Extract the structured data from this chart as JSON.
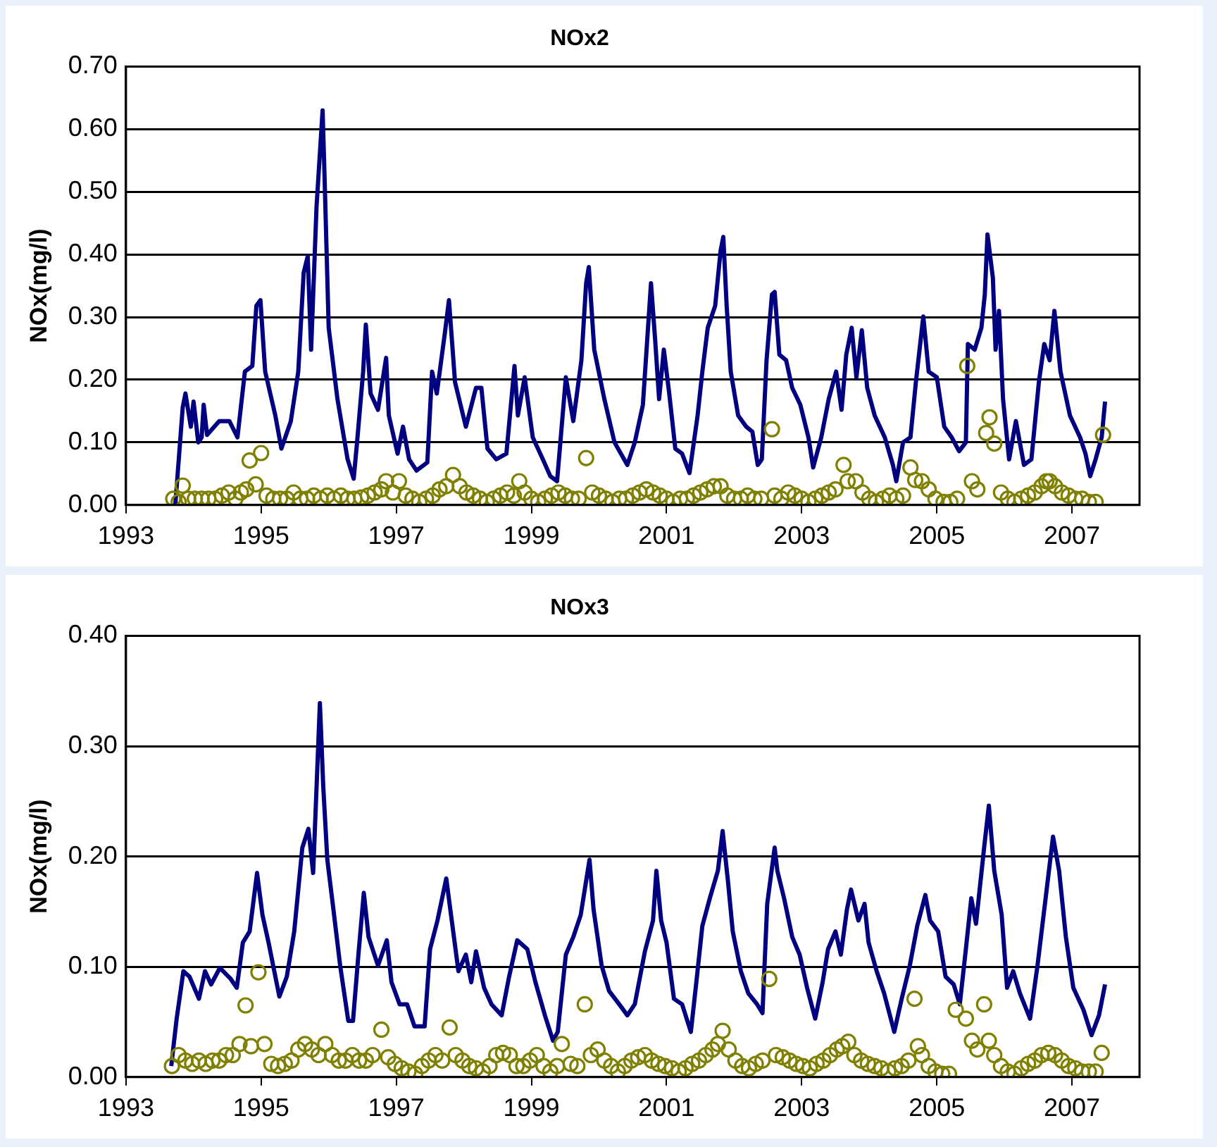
{
  "chart_data": [
    {
      "type": "line",
      "title": "NOx2",
      "ylabel": "NOx(mg/l)",
      "xlim": [
        1993,
        2008
      ],
      "xticks": [
        1993,
        1995,
        1997,
        1999,
        2001,
        2003,
        2005,
        2007
      ],
      "ylim": [
        0,
        0.7
      ],
      "yticks": [
        {
          "value": 0,
          "label": "0.00"
        },
        {
          "value": 0.1,
          "label": "0.10"
        },
        {
          "value": 0.2,
          "label": "0.20"
        },
        {
          "value": 0.3,
          "label": "0.30"
        },
        {
          "value": 0.4,
          "label": "0.40"
        },
        {
          "value": 0.5,
          "label": "0.50"
        },
        {
          "value": 0.6,
          "label": "0.60"
        },
        {
          "value": 0.7,
          "label": "0.70"
        }
      ],
      "grid": "y",
      "legend": false,
      "series": [
        {
          "marker": "none",
          "color": "#000080",
          "x": [
            1993.73,
            1993.84,
            1993.88,
            1993.96,
            1994.0,
            1994.07,
            1994.12,
            1994.15,
            1994.2,
            1994.38,
            1994.53,
            1994.65,
            1994.76,
            1994.87,
            1994.93,
            1994.99,
            1995.06,
            1995.21,
            1995.3,
            1995.44,
            1995.55,
            1995.63,
            1995.69,
            1995.74,
            1995.82,
            1995.91,
            1995.94,
            1996.0,
            1996.04,
            1996.13,
            1996.28,
            1996.37,
            1996.42,
            1996.51,
            1996.55,
            1996.62,
            1996.73,
            1996.85,
            1996.89,
            1997.02,
            1997.1,
            1997.19,
            1997.3,
            1997.46,
            1997.53,
            1997.6,
            1997.72,
            1997.78,
            1997.87,
            1998.03,
            1998.18,
            1998.26,
            1998.35,
            1998.48,
            1998.63,
            1998.75,
            1998.8,
            1998.9,
            1999.02,
            1999.17,
            1999.28,
            1999.38,
            1999.51,
            1999.62,
            1999.74,
            1999.81,
            1999.85,
            1999.93,
            2000.08,
            2000.23,
            2000.42,
            2000.53,
            2000.65,
            2000.77,
            2000.83,
            2000.89,
            2000.96,
            2001.04,
            2001.13,
            2001.23,
            2001.34,
            2001.46,
            2001.53,
            2001.61,
            2001.72,
            2001.8,
            2001.84,
            2001.89,
            2001.95,
            2002.06,
            2002.18,
            2002.27,
            2002.35,
            2002.41,
            2002.48,
            2002.56,
            2002.6,
            2002.67,
            2002.77,
            2002.86,
            2002.98,
            2003.1,
            2003.17,
            2003.29,
            2003.4,
            2003.51,
            2003.59,
            2003.66,
            2003.74,
            2003.81,
            2003.89,
            2003.97,
            2004.08,
            2004.23,
            2004.35,
            2004.4,
            2004.5,
            2004.61,
            2004.69,
            2004.8,
            2004.88,
            2005.0,
            2005.11,
            2005.22,
            2005.33,
            2005.43,
            2005.46,
            2005.56,
            2005.66,
            2005.71,
            2005.75,
            2005.83,
            2005.87,
            2005.92,
            2005.98,
            2006.07,
            2006.17,
            2006.29,
            2006.4,
            2006.51,
            2006.59,
            2006.67,
            2006.74,
            2006.83,
            2006.97,
            2007.12,
            2007.2,
            2007.27,
            2007.35,
            2007.44,
            2007.49
          ],
          "values": [
            0.0,
            0.156,
            0.178,
            0.125,
            0.165,
            0.1,
            0.108,
            0.16,
            0.112,
            0.134,
            0.134,
            0.108,
            0.213,
            0.222,
            0.318,
            0.327,
            0.213,
            0.143,
            0.09,
            0.134,
            0.213,
            0.371,
            0.397,
            0.248,
            0.476,
            0.63,
            0.52,
            0.283,
            0.248,
            0.169,
            0.073,
            0.042,
            0.1,
            0.213,
            0.288,
            0.178,
            0.152,
            0.235,
            0.143,
            0.082,
            0.125,
            0.073,
            0.055,
            0.068,
            0.213,
            0.178,
            0.275,
            0.327,
            0.196,
            0.125,
            0.187,
            0.187,
            0.09,
            0.073,
            0.082,
            0.222,
            0.143,
            0.204,
            0.108,
            0.073,
            0.046,
            0.038,
            0.204,
            0.134,
            0.231,
            0.354,
            0.38,
            0.248,
            0.169,
            0.1,
            0.064,
            0.1,
            0.16,
            0.354,
            0.266,
            0.169,
            0.248,
            0.178,
            0.09,
            0.082,
            0.051,
            0.143,
            0.213,
            0.283,
            0.318,
            0.406,
            0.428,
            0.318,
            0.213,
            0.143,
            0.125,
            0.117,
            0.064,
            0.073,
            0.231,
            0.336,
            0.34,
            0.24,
            0.231,
            0.187,
            0.16,
            0.108,
            0.06,
            0.108,
            0.169,
            0.213,
            0.152,
            0.24,
            0.283,
            0.204,
            0.279,
            0.187,
            0.143,
            0.108,
            0.064,
            0.038,
            0.1,
            0.108,
            0.196,
            0.301,
            0.213,
            0.204,
            0.125,
            0.108,
            0.086,
            0.1,
            0.257,
            0.248,
            0.283,
            0.336,
            0.432,
            0.362,
            0.248,
            0.31,
            0.169,
            0.073,
            0.134,
            0.064,
            0.073,
            0.196,
            0.257,
            0.231,
            0.31,
            0.213,
            0.143,
            0.108,
            0.082,
            0.046,
            0.073,
            0.108,
            0.165
          ]
        },
        {
          "type": "scatter",
          "marker": "circle",
          "color": "#808000",
          "x": [
            1993.7,
            1993.78,
            1993.84,
            1993.92,
            1994.02,
            1994.12,
            1994.22,
            1994.32,
            1994.42,
            1994.52,
            1994.62,
            1994.7,
            1994.78,
            1994.83,
            1994.92,
            1995.0,
            1995.08,
            1995.18,
            1995.28,
            1995.38,
            1995.48,
            1995.58,
            1995.68,
            1995.78,
            1995.88,
            1995.98,
            1996.08,
            1996.18,
            1996.28,
            1996.38,
            1996.48,
            1996.58,
            1996.68,
            1996.78,
            1996.85,
            1996.95,
            1997.04,
            1997.14,
            1997.24,
            1997.34,
            1997.44,
            1997.54,
            1997.64,
            1997.74,
            1997.84,
            1997.94,
            1998.04,
            1998.14,
            1998.24,
            1998.34,
            1998.44,
            1998.54,
            1998.64,
            1998.74,
            1998.82,
            1998.9,
            1999.0,
            1999.1,
            1999.2,
            1999.3,
            1999.4,
            1999.5,
            1999.6,
            1999.7,
            1999.81,
            1999.9,
            2000.0,
            2000.1,
            2000.2,
            2000.3,
            2000.4,
            2000.5,
            2000.6,
            2000.7,
            2000.8,
            2000.9,
            2001.0,
            2001.1,
            2001.2,
            2001.3,
            2001.4,
            2001.5,
            2001.6,
            2001.7,
            2001.8,
            2001.9,
            2002.0,
            2002.1,
            2002.2,
            2002.3,
            2002.4,
            2002.56,
            2002.6,
            2002.7,
            2002.8,
            2002.9,
            2003.0,
            2003.1,
            2003.2,
            2003.3,
            2003.4,
            2003.5,
            2003.62,
            2003.68,
            2003.8,
            2003.9,
            2004.0,
            2004.1,
            2004.2,
            2004.3,
            2004.4,
            2004.5,
            2004.61,
            2004.68,
            2004.78,
            2004.88,
            2004.98,
            2005.1,
            2005.2,
            2005.3,
            2005.45,
            2005.52,
            2005.6,
            2005.73,
            2005.78,
            2005.85,
            2005.95,
            2006.05,
            2006.15,
            2006.25,
            2006.35,
            2006.45,
            2006.55,
            2006.62,
            2006.67,
            2006.75,
            2006.85,
            2006.95,
            2007.05,
            2007.15,
            2007.25,
            2007.35,
            2007.46
          ],
          "values": [
            0.01,
            0.005,
            0.031,
            0.01,
            0.01,
            0.01,
            0.01,
            0.01,
            0.015,
            0.02,
            0.01,
            0.02,
            0.025,
            0.071,
            0.033,
            0.083,
            0.015,
            0.01,
            0.01,
            0.01,
            0.02,
            0.01,
            0.01,
            0.015,
            0.01,
            0.015,
            0.01,
            0.015,
            0.01,
            0.01,
            0.012,
            0.015,
            0.02,
            0.025,
            0.038,
            0.02,
            0.038,
            0.015,
            0.01,
            0.005,
            0.01,
            0.015,
            0.025,
            0.03,
            0.048,
            0.03,
            0.02,
            0.015,
            0.01,
            0.005,
            0.01,
            0.015,
            0.02,
            0.015,
            0.038,
            0.02,
            0.01,
            0.005,
            0.01,
            0.015,
            0.02,
            0.015,
            0.01,
            0.01,
            0.075,
            0.02,
            0.015,
            0.01,
            0.005,
            0.01,
            0.01,
            0.015,
            0.02,
            0.025,
            0.02,
            0.015,
            0.01,
            0.005,
            0.01,
            0.01,
            0.015,
            0.02,
            0.025,
            0.03,
            0.03,
            0.015,
            0.01,
            0.01,
            0.015,
            0.01,
            0.01,
            0.121,
            0.015,
            0.01,
            0.02,
            0.015,
            0.01,
            0.005,
            0.01,
            0.015,
            0.02,
            0.025,
            0.064,
            0.038,
            0.038,
            0.02,
            0.01,
            0.005,
            0.01,
            0.015,
            0.01,
            0.015,
            0.06,
            0.04,
            0.038,
            0.025,
            0.01,
            0.005,
            0.005,
            0.01,
            0.222,
            0.038,
            0.025,
            0.115,
            0.14,
            0.098,
            0.02,
            0.01,
            0.005,
            0.01,
            0.015,
            0.02,
            0.03,
            0.038,
            0.038,
            0.03,
            0.02,
            0.015,
            0.01,
            0.01,
            0.005,
            0.005,
            0.112
          ]
        }
      ]
    },
    {
      "type": "line",
      "title": "NOx3",
      "ylabel": "NOx(mg/l)",
      "xlim": [
        1993,
        2008
      ],
      "xticks": [
        1993,
        1995,
        1997,
        1999,
        2001,
        2003,
        2005,
        2007
      ],
      "ylim": [
        0,
        0.4
      ],
      "yticks": [
        {
          "value": 0,
          "label": "0.00"
        },
        {
          "value": 0.1,
          "label": "0.10"
        },
        {
          "value": 0.2,
          "label": "0.20"
        },
        {
          "value": 0.3,
          "label": "0.30"
        },
        {
          "value": 0.4,
          "label": "0.40"
        }
      ],
      "grid": "y",
      "legend": false,
      "series": [
        {
          "marker": "none",
          "color": "#000080",
          "x": [
            1993.67,
            1993.75,
            1993.85,
            1993.94,
            1994.08,
            1994.17,
            1994.26,
            1994.39,
            1994.55,
            1994.64,
            1994.73,
            1994.83,
            1994.94,
            1995.02,
            1995.11,
            1995.27,
            1995.38,
            1995.49,
            1995.61,
            1995.7,
            1995.77,
            1995.87,
            1995.92,
            1995.98,
            1996.06,
            1996.17,
            1996.29,
            1996.36,
            1996.44,
            1996.52,
            1996.59,
            1996.73,
            1996.86,
            1996.93,
            1997.05,
            1997.16,
            1997.27,
            1997.42,
            1997.5,
            1997.61,
            1997.74,
            1997.8,
            1997.92,
            1998.03,
            1998.11,
            1998.18,
            1998.3,
            1998.41,
            1998.56,
            1998.67,
            1998.79,
            1998.94,
            1999.06,
            1999.2,
            1999.32,
            1999.39,
            1999.51,
            1999.62,
            1999.73,
            1999.86,
            1999.92,
            2000.04,
            2000.15,
            2000.3,
            2000.42,
            2000.53,
            2000.68,
            2000.8,
            2000.85,
            2000.92,
            2001.0,
            2001.11,
            2001.23,
            2001.36,
            2001.45,
            2001.53,
            2001.64,
            2001.76,
            2001.83,
            2001.91,
            2001.98,
            2002.1,
            2002.21,
            2002.34,
            2002.42,
            2002.49,
            2002.6,
            2002.64,
            2002.74,
            2002.86,
            2002.97,
            2003.08,
            2003.2,
            2003.31,
            2003.39,
            2003.5,
            2003.58,
            2003.67,
            2003.73,
            2003.84,
            2003.93,
            2003.99,
            2004.11,
            2004.22,
            2004.37,
            2004.48,
            2004.6,
            2004.71,
            2004.83,
            2004.9,
            2005.02,
            2005.13,
            2005.25,
            2005.34,
            2005.43,
            2005.51,
            2005.58,
            2005.7,
            2005.77,
            2005.85,
            2005.96,
            2006.04,
            2006.13,
            2006.23,
            2006.38,
            2006.49,
            2006.61,
            2006.72,
            2006.81,
            2006.91,
            2007.02,
            2007.17,
            2007.29,
            2007.4,
            2007.49
          ],
          "values": [
            0.01,
            0.053,
            0.096,
            0.091,
            0.071,
            0.096,
            0.084,
            0.099,
            0.089,
            0.081,
            0.122,
            0.132,
            0.185,
            0.147,
            0.122,
            0.073,
            0.091,
            0.132,
            0.208,
            0.225,
            0.185,
            0.339,
            0.263,
            0.197,
            0.157,
            0.101,
            0.051,
            0.051,
            0.111,
            0.167,
            0.127,
            0.101,
            0.124,
            0.086,
            0.066,
            0.066,
            0.046,
            0.046,
            0.116,
            0.142,
            0.18,
            0.152,
            0.096,
            0.111,
            0.086,
            0.114,
            0.081,
            0.066,
            0.056,
            0.091,
            0.124,
            0.116,
            0.086,
            0.056,
            0.033,
            0.041,
            0.111,
            0.127,
            0.147,
            0.197,
            0.152,
            0.101,
            0.078,
            0.066,
            0.056,
            0.066,
            0.114,
            0.142,
            0.187,
            0.142,
            0.122,
            0.071,
            0.066,
            0.041,
            0.091,
            0.137,
            0.162,
            0.187,
            0.223,
            0.177,
            0.132,
            0.096,
            0.076,
            0.066,
            0.058,
            0.157,
            0.208,
            0.187,
            0.162,
            0.127,
            0.111,
            0.081,
            0.053,
            0.086,
            0.116,
            0.132,
            0.111,
            0.152,
            0.17,
            0.142,
            0.157,
            0.122,
            0.096,
            0.076,
            0.041,
            0.071,
            0.101,
            0.137,
            0.165,
            0.142,
            0.132,
            0.091,
            0.084,
            0.066,
            0.116,
            0.162,
            0.139,
            0.208,
            0.246,
            0.187,
            0.147,
            0.081,
            0.096,
            0.076,
            0.053,
            0.101,
            0.162,
            0.218,
            0.187,
            0.127,
            0.081,
            0.061,
            0.038,
            0.056,
            0.084
          ]
        },
        {
          "type": "scatter",
          "marker": "circle",
          "color": "#808000",
          "x": [
            1993.68,
            1993.78,
            1993.88,
            1993.98,
            1994.08,
            1994.18,
            1994.28,
            1994.38,
            1994.48,
            1994.58,
            1994.68,
            1994.77,
            1994.85,
            1994.96,
            1995.05,
            1995.15,
            1995.25,
            1995.35,
            1995.45,
            1995.55,
            1995.65,
            1995.75,
            1995.85,
            1995.95,
            1996.05,
            1996.15,
            1996.25,
            1996.35,
            1996.45,
            1996.55,
            1996.65,
            1996.78,
            1996.88,
            1996.98,
            1997.08,
            1997.18,
            1997.28,
            1997.38,
            1997.48,
            1997.58,
            1997.68,
            1997.79,
            1997.88,
            1997.98,
            1998.08,
            1998.18,
            1998.28,
            1998.38,
            1998.48,
            1998.58,
            1998.68,
            1998.78,
            1998.88,
            1998.98,
            1999.08,
            1999.18,
            1999.28,
            1999.38,
            1999.45,
            1999.58,
            1999.68,
            1999.79,
            1999.88,
            1999.98,
            2000.08,
            2000.18,
            2000.28,
            2000.38,
            2000.48,
            2000.58,
            2000.68,
            2000.78,
            2000.88,
            2000.98,
            2001.08,
            2001.18,
            2001.28,
            2001.38,
            2001.48,
            2001.58,
            2001.68,
            2001.76,
            2001.83,
            2001.92,
            2002.02,
            2002.12,
            2002.22,
            2002.32,
            2002.42,
            2002.52,
            2002.62,
            2002.72,
            2002.82,
            2002.92,
            2003.02,
            2003.12,
            2003.22,
            2003.32,
            2003.42,
            2003.52,
            2003.6,
            2003.69,
            2003.78,
            2003.88,
            2003.98,
            2004.08,
            2004.18,
            2004.28,
            2004.38,
            2004.48,
            2004.58,
            2004.67,
            2004.72,
            2004.78,
            2004.88,
            2004.98,
            2005.08,
            2005.18,
            2005.28,
            2005.43,
            2005.52,
            2005.6,
            2005.7,
            2005.77,
            2005.85,
            2005.95,
            2006.05,
            2006.15,
            2006.25,
            2006.35,
            2006.45,
            2006.55,
            2006.65,
            2006.75,
            2006.85,
            2006.95,
            2007.05,
            2007.15,
            2007.25,
            2007.35,
            2007.44
          ],
          "values": [
            0.01,
            0.02,
            0.015,
            0.012,
            0.015,
            0.012,
            0.015,
            0.015,
            0.02,
            0.02,
            0.03,
            0.065,
            0.028,
            0.095,
            0.03,
            0.012,
            0.01,
            0.012,
            0.015,
            0.025,
            0.03,
            0.025,
            0.02,
            0.03,
            0.02,
            0.015,
            0.015,
            0.02,
            0.015,
            0.015,
            0.02,
            0.043,
            0.018,
            0.012,
            0.008,
            0.005,
            0.003,
            0.01,
            0.015,
            0.02,
            0.015,
            0.045,
            0.02,
            0.015,
            0.01,
            0.008,
            0.005,
            0.01,
            0.02,
            0.022,
            0.02,
            0.01,
            0.01,
            0.015,
            0.02,
            0.01,
            0.005,
            0.01,
            0.03,
            0.012,
            0.01,
            0.066,
            0.02,
            0.025,
            0.015,
            0.01,
            0.005,
            0.01,
            0.015,
            0.018,
            0.02,
            0.015,
            0.012,
            0.01,
            0.008,
            0.005,
            0.008,
            0.012,
            0.015,
            0.02,
            0.025,
            0.03,
            0.042,
            0.025,
            0.015,
            0.01,
            0.008,
            0.012,
            0.015,
            0.089,
            0.02,
            0.018,
            0.015,
            0.012,
            0.01,
            0.008,
            0.012,
            0.015,
            0.02,
            0.025,
            0.028,
            0.032,
            0.02,
            0.015,
            0.012,
            0.01,
            0.008,
            0.005,
            0.008,
            0.01,
            0.015,
            0.071,
            0.028,
            0.02,
            0.01,
            0.005,
            0.003,
            0.003,
            0.061,
            0.053,
            0.033,
            0.025,
            0.066,
            0.033,
            0.02,
            0.01,
            0.005,
            0.003,
            0.008,
            0.012,
            0.015,
            0.02,
            0.022,
            0.02,
            0.015,
            0.01,
            0.008,
            0.005,
            0.005,
            0.005,
            0.022
          ]
        }
      ]
    }
  ]
}
